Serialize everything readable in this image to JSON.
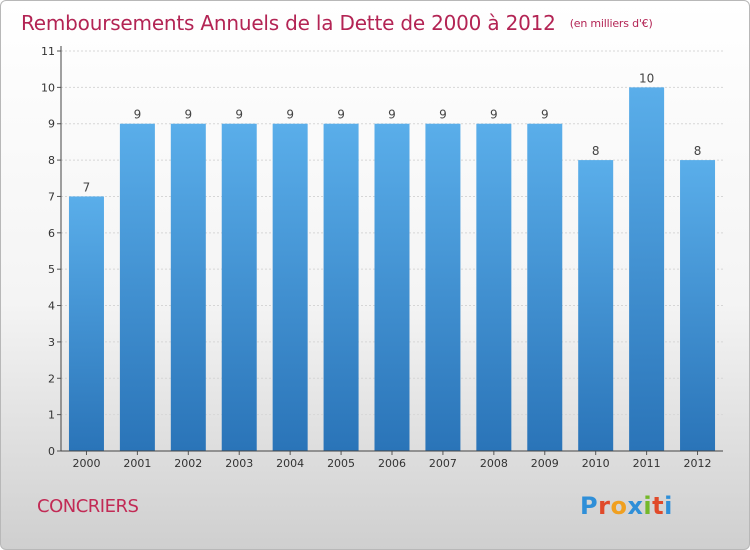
{
  "title": "Remboursements Annuels de la Dette de 2000 à 2012",
  "subtitle": "(en milliers d'€)",
  "commune": "CONCRIERS",
  "logo_text": "Proxiti",
  "colors": {
    "title": "#b32454",
    "bar_top": "#5aaeea",
    "bar_bottom": "#2a74b8",
    "logo_letters": [
      "#2f8fd8",
      "#e04a2a",
      "#f0a020",
      "#2f8fd8",
      "#74b82a",
      "#e04a2a",
      "#2f8fd8"
    ]
  },
  "chart_data": {
    "type": "bar",
    "title": "Remboursements Annuels de la Dette de 2000 à 2012",
    "subtitle": "(en milliers d'€)",
    "categories": [
      "2000",
      "2001",
      "2002",
      "2003",
      "2004",
      "2005",
      "2006",
      "2007",
      "2008",
      "2009",
      "2010",
      "2011",
      "2012"
    ],
    "values": [
      7,
      9,
      9,
      9,
      9,
      9,
      9,
      9,
      9,
      9,
      8,
      10,
      8
    ],
    "data_labels": [
      "7",
      "9",
      "9",
      "9",
      "9",
      "9",
      "9",
      "9",
      "9",
      "9",
      "8",
      "10",
      "8"
    ],
    "yticks": [
      "0",
      "1",
      "2",
      "3",
      "4",
      "5",
      "6",
      "7",
      "8",
      "9",
      "10",
      "11"
    ],
    "ylim": [
      0,
      11
    ],
    "grid": true,
    "xlabel": "",
    "ylabel": ""
  }
}
